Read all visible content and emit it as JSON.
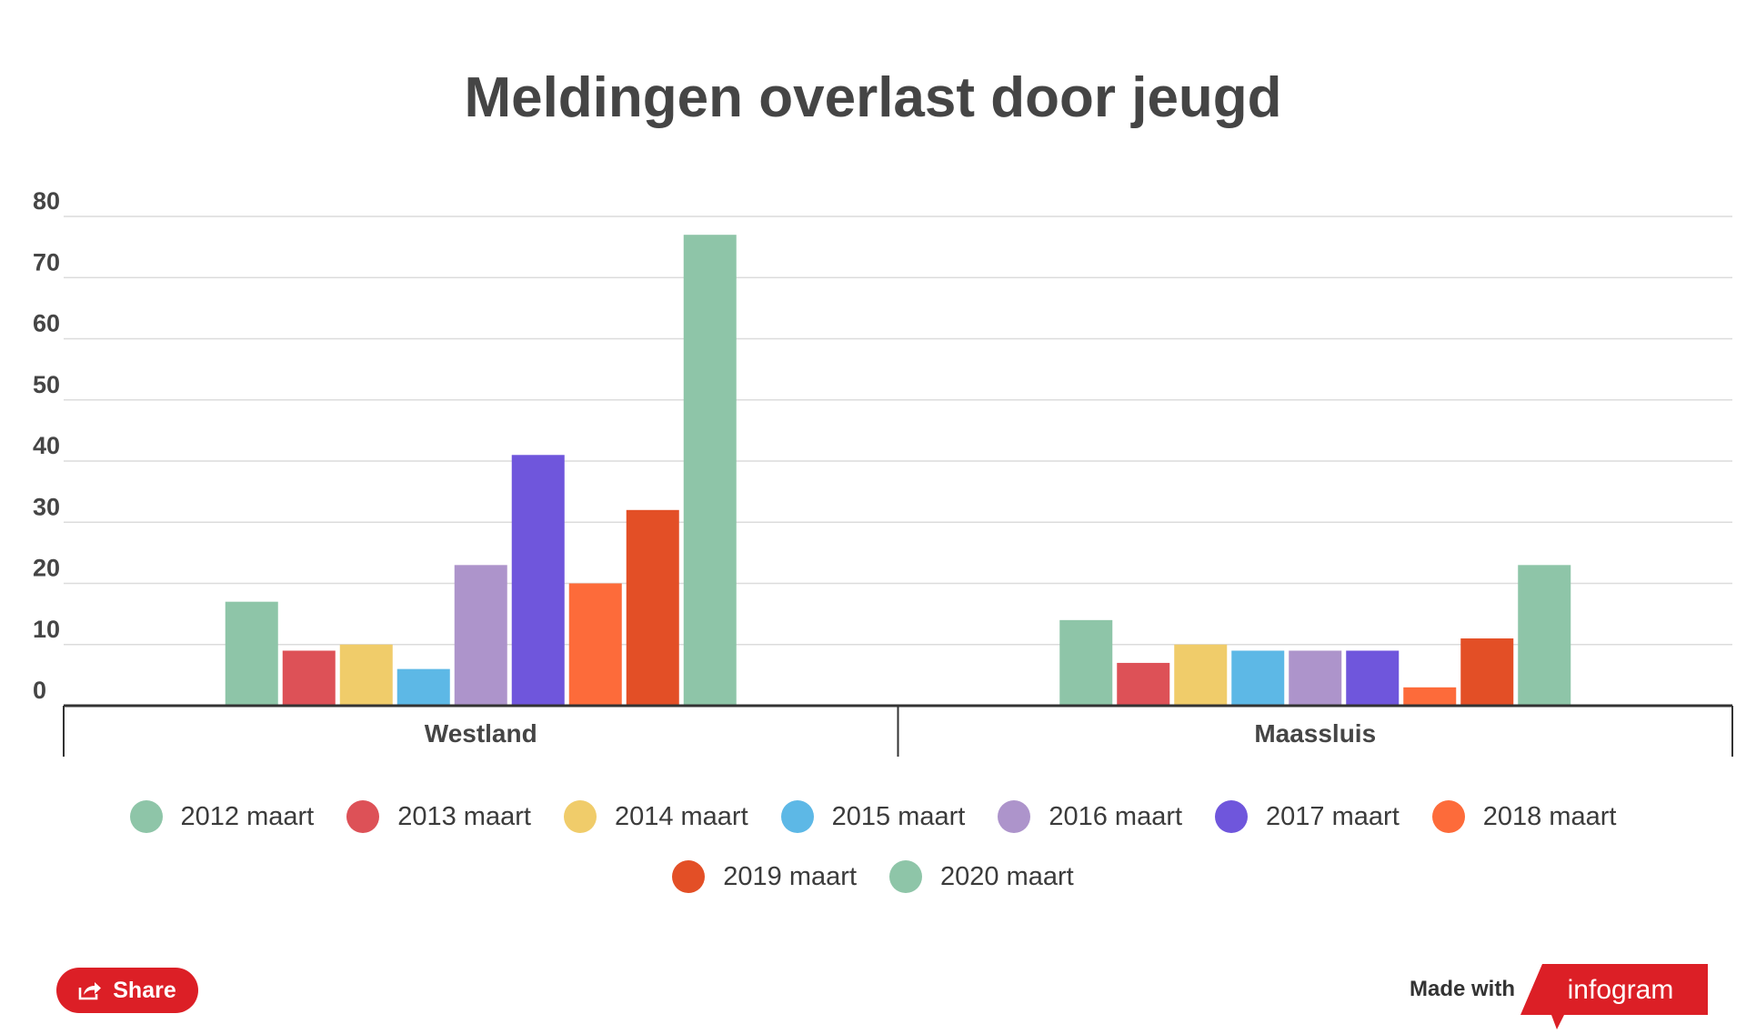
{
  "chart_data": {
    "type": "bar",
    "title": "Meldingen overlast door jeugd",
    "xlabel": "",
    "ylabel": "",
    "categories": [
      "Westland",
      "Maassluis"
    ],
    "ylim": [
      0,
      80
    ],
    "yticks": [
      0,
      10,
      20,
      30,
      40,
      50,
      60,
      70,
      80
    ],
    "grid": true,
    "legend_position": "bottom",
    "series": [
      {
        "name": "2012 maart",
        "color": "#8ec5a8",
        "values": [
          17,
          14
        ]
      },
      {
        "name": "2013 maart",
        "color": "#dd5157",
        "values": [
          9,
          7
        ]
      },
      {
        "name": "2014 maart",
        "color": "#f0cc6a",
        "values": [
          10,
          10
        ]
      },
      {
        "name": "2015 maart",
        "color": "#5db8e6",
        "values": [
          6,
          9
        ]
      },
      {
        "name": "2016 maart",
        "color": "#ad94cb",
        "values": [
          23,
          9
        ]
      },
      {
        "name": "2017 maart",
        "color": "#6f56dc",
        "values": [
          41,
          9
        ]
      },
      {
        "name": "2018 maart",
        "color": "#fd6b3a",
        "values": [
          20,
          3
        ]
      },
      {
        "name": "2019 maart",
        "color": "#e34f26",
        "values": [
          32,
          11
        ]
      },
      {
        "name": "2020 maart",
        "color": "#8ec5a8",
        "values": [
          77,
          23
        ]
      }
    ]
  },
  "share": {
    "label": "Share",
    "icon": "share-icon"
  },
  "footer": {
    "made_with": "Made with",
    "brand": "infogram",
    "brand_color": "#dc1f26"
  }
}
